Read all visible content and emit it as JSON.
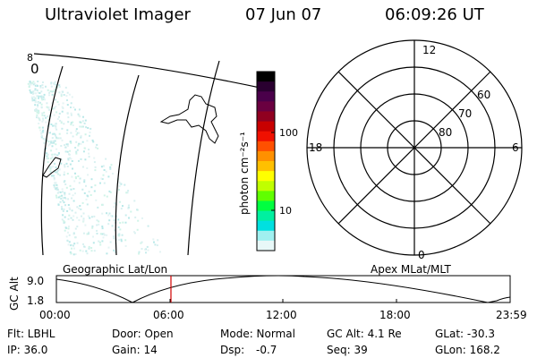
{
  "header": {
    "title": "Ultraviolet Imager",
    "date": "07 Jun 07",
    "time": "06:09:26 UT"
  },
  "geo_map": {
    "partial_labels": [
      "8",
      "0"
    ]
  },
  "colorbar": {
    "unit": "photon cm⁻²s⁻¹",
    "tick_labels": [
      "100",
      "10"
    ],
    "colors": [
      "#000000",
      "#2a0030",
      "#4a004a",
      "#6a0040",
      "#900020",
      "#c80000",
      "#f01000",
      "#ff5000",
      "#ff9000",
      "#ffc000",
      "#ffff00",
      "#c0ff00",
      "#60ff00",
      "#00ff40",
      "#00f0a0",
      "#00e0e0",
      "#a0f0f0",
      "#e8f8f8"
    ]
  },
  "polar": {
    "mlt_labels": {
      "top": "12",
      "left": "18",
      "right": "6",
      "bottom": "0"
    },
    "lat_labels": [
      "60",
      "70",
      "80"
    ]
  },
  "orbit": {
    "left_title": "Geographic Lat/Lon",
    "right_title": "Apex MLat/MLT",
    "y_axis_label": "GC Alt",
    "y_ticks": [
      "9.0",
      "1.8"
    ],
    "x_ticks": [
      "00:00",
      "06:00",
      "12:00",
      "18:00",
      "23:59"
    ],
    "marker_color": "#d00000"
  },
  "info": {
    "row1": {
      "filter": "Flt: LBHL",
      "door": "Door: Open",
      "mode": "Mode: Normal",
      "alt": "GC Alt: 4.1 Re",
      "glat": "GLat: -30.3"
    },
    "row2": {
      "ip": "IP: 36.0",
      "gain": "Gain: 14",
      "dsp_label": "Dsp:",
      "dsp_value": "-0.7",
      "seq": "Seq: 39",
      "glon": "GLon: 168.2"
    }
  }
}
